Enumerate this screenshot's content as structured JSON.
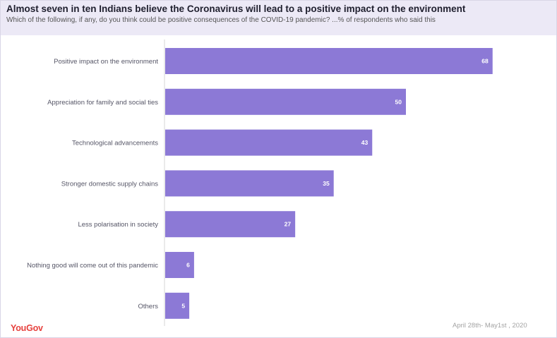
{
  "header": {
    "title": "Almost seven in ten Indians believe the Coronavirus will lead to a positive impact on the environment",
    "subtitle": "Which of the following, if any, do you think could be positive consequences of the COVID-19 pandemic? ...% of respondents who said this"
  },
  "chart_data": {
    "type": "bar",
    "orientation": "horizontal",
    "title": "Almost seven in ten Indians believe the Coronavirus will lead to a positive impact on the environment",
    "subtitle": "Which of the following, if any, do you think could be positive consequences of the COVID-19 pandemic? ...% of respondents who said this",
    "categories": [
      "Positive impact on the environment",
      "Appreciation for family and social ties",
      "Technological advancements",
      "Stronger domestic supply chains",
      "Less polarisation in society",
      "Nothing good will come out of this pandemic",
      "Others"
    ],
    "values": [
      68,
      50,
      43,
      35,
      27,
      6,
      5
    ],
    "xlabel": "",
    "ylabel": "",
    "xlim": [
      0,
      80
    ],
    "grid": false,
    "bar_color": "#8c79d6",
    "data_labels": "inside-end"
  },
  "footer": {
    "brand": "YouGov",
    "date": "April 28th- May1st , 2020"
  },
  "colors": {
    "header_bg": "#ece9f6",
    "bar": "#8c79d6",
    "brand": "#e6413d"
  }
}
